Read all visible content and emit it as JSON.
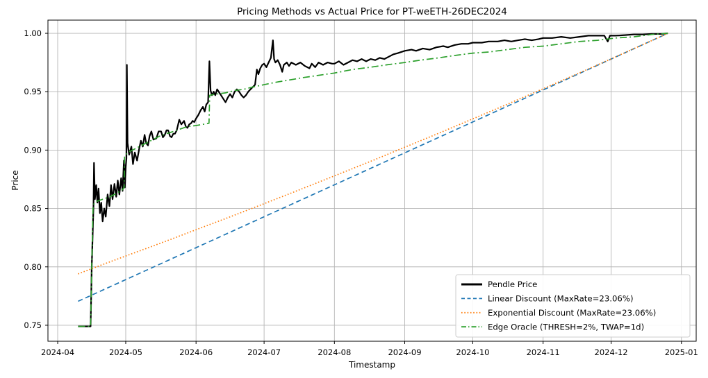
{
  "figure": {
    "title": "Pricing Methods vs Actual Price for PT-weETH-26DEC2024",
    "xlabel": "Timestamp",
    "ylabel": "Price"
  },
  "chart_data": {
    "type": "line",
    "title": "Pricing Methods vs Actual Price for PT-weETH-26DEC2024",
    "xlabel": "Timestamp",
    "ylabel": "Price",
    "x_unit": "days since 2024-04-01",
    "x_domain": [
      -4.3,
      281.5
    ],
    "y_domain": [
      0.7363,
      1.0113
    ],
    "grid": true,
    "legend_position": "lower right",
    "x_ticks": [
      {
        "d": 0,
        "label": "2024-04"
      },
      {
        "d": 30,
        "label": "2024-05"
      },
      {
        "d": 61,
        "label": "2024-06"
      },
      {
        "d": 91,
        "label": "2024-07"
      },
      {
        "d": 122,
        "label": "2024-08"
      },
      {
        "d": 153,
        "label": "2024-09"
      },
      {
        "d": 183,
        "label": "2024-10"
      },
      {
        "d": 214,
        "label": "2024-11"
      },
      {
        "d": 244,
        "label": "2024-12"
      },
      {
        "d": 275,
        "label": "2025-01"
      }
    ],
    "y_ticks": [
      {
        "v": 0.75,
        "label": "0.75"
      },
      {
        "v": 0.8,
        "label": "0.80"
      },
      {
        "v": 0.85,
        "label": "0.85"
      },
      {
        "v": 0.9,
        "label": "0.90"
      },
      {
        "v": 0.95,
        "label": "0.95"
      },
      {
        "v": 1.0,
        "label": "1.00"
      }
    ],
    "series": [
      {
        "name": "Pendle Price",
        "id": "pendle-price",
        "color": "#000000",
        "style": "solid",
        "width": 2.2,
        "points": [
          [
            9,
            0.749
          ],
          [
            14.5,
            0.749
          ],
          [
            14.8,
            0.78
          ],
          [
            15,
            0.799
          ],
          [
            15.3,
            0.82
          ],
          [
            15.8,
            0.853
          ],
          [
            16,
            0.889
          ],
          [
            16.4,
            0.858
          ],
          [
            17,
            0.87
          ],
          [
            17.5,
            0.855
          ],
          [
            18,
            0.867
          ],
          [
            18.6,
            0.846
          ],
          [
            19.2,
            0.855
          ],
          [
            19.8,
            0.839
          ],
          [
            20.5,
            0.85
          ],
          [
            21.2,
            0.843
          ],
          [
            22,
            0.862
          ],
          [
            22.8,
            0.852
          ],
          [
            23.5,
            0.87
          ],
          [
            24.2,
            0.858
          ],
          [
            25,
            0.871
          ],
          [
            25.8,
            0.86
          ],
          [
            26.5,
            0.874
          ],
          [
            27.2,
            0.862
          ],
          [
            28,
            0.876
          ],
          [
            28.6,
            0.865
          ],
          [
            29.2,
            0.891
          ],
          [
            29.6,
            0.868
          ],
          [
            30,
            0.886
          ],
          [
            30.3,
            0.893
          ],
          [
            30.5,
            0.973
          ],
          [
            30.8,
            0.906
          ],
          [
            31.5,
            0.896
          ],
          [
            32.5,
            0.903
          ],
          [
            33.2,
            0.888
          ],
          [
            34,
            0.898
          ],
          [
            35,
            0.891
          ],
          [
            36,
            0.902
          ],
          [
            36.7,
            0.908
          ],
          [
            37.5,
            0.903
          ],
          [
            38.3,
            0.913
          ],
          [
            39,
            0.906
          ],
          [
            39.8,
            0.904
          ],
          [
            40.5,
            0.912
          ],
          [
            41.3,
            0.916
          ],
          [
            42.2,
            0.909
          ],
          [
            43.5,
            0.91
          ],
          [
            44.5,
            0.916
          ],
          [
            45.6,
            0.916
          ],
          [
            46.4,
            0.911
          ],
          [
            47.2,
            0.913
          ],
          [
            48,
            0.917
          ],
          [
            48.7,
            0.917
          ],
          [
            49.5,
            0.912
          ],
          [
            50.2,
            0.911
          ],
          [
            51,
            0.914
          ],
          [
            51.7,
            0.914
          ],
          [
            52.5,
            0.917
          ],
          [
            53.6,
            0.926
          ],
          [
            54.5,
            0.922
          ],
          [
            55.7,
            0.925
          ],
          [
            56.5,
            0.92
          ],
          [
            57.2,
            0.919
          ],
          [
            58,
            0.922
          ],
          [
            58.8,
            0.923
          ],
          [
            59.5,
            0.925
          ],
          [
            60.2,
            0.924
          ],
          [
            61,
            0.927
          ],
          [
            62,
            0.93
          ],
          [
            63,
            0.934
          ],
          [
            64,
            0.937
          ],
          [
            64.8,
            0.933
          ],
          [
            65.5,
            0.939
          ],
          [
            66.3,
            0.941
          ],
          [
            66.9,
            0.976
          ],
          [
            67.4,
            0.951
          ],
          [
            68,
            0.947
          ],
          [
            68.8,
            0.95
          ],
          [
            69.5,
            0.947
          ],
          [
            70.3,
            0.952
          ],
          [
            71,
            0.95
          ],
          [
            72,
            0.947
          ],
          [
            73,
            0.944
          ],
          [
            74,
            0.941
          ],
          [
            75,
            0.945
          ],
          [
            76,
            0.948
          ],
          [
            77,
            0.945
          ],
          [
            78,
            0.95
          ],
          [
            79,
            0.952
          ],
          [
            80,
            0.95
          ],
          [
            81,
            0.947
          ],
          [
            82,
            0.945
          ],
          [
            83,
            0.947
          ],
          [
            84,
            0.95
          ],
          [
            85,
            0.952
          ],
          [
            86,
            0.954
          ],
          [
            87,
            0.956
          ],
          [
            87.8,
            0.969
          ],
          [
            88.5,
            0.965
          ],
          [
            89.3,
            0.97
          ],
          [
            90.2,
            0.973
          ],
          [
            91,
            0.974
          ],
          [
            92,
            0.971
          ],
          [
            93,
            0.975
          ],
          [
            94,
            0.979
          ],
          [
            94.9,
            0.994
          ],
          [
            95.4,
            0.978
          ],
          [
            96,
            0.975
          ],
          [
            97,
            0.977
          ],
          [
            98,
            0.973
          ],
          [
            99,
            0.967
          ],
          [
            99.7,
            0.973
          ],
          [
            101,
            0.975
          ],
          [
            102,
            0.972
          ],
          [
            103,
            0.975
          ],
          [
            105,
            0.973
          ],
          [
            107,
            0.975
          ],
          [
            109,
            0.972
          ],
          [
            111,
            0.97
          ],
          [
            112,
            0.974
          ],
          [
            113.5,
            0.971
          ],
          [
            115,
            0.975
          ],
          [
            117,
            0.973
          ],
          [
            119,
            0.975
          ],
          [
            121,
            0.974
          ],
          [
            122,
            0.974
          ],
          [
            124,
            0.976
          ],
          [
            126,
            0.973
          ],
          [
            128,
            0.975
          ],
          [
            130,
            0.977
          ],
          [
            132,
            0.976
          ],
          [
            134,
            0.978
          ],
          [
            136,
            0.976
          ],
          [
            138,
            0.978
          ],
          [
            140,
            0.977
          ],
          [
            142,
            0.979
          ],
          [
            144,
            0.978
          ],
          [
            146,
            0.98
          ],
          [
            148,
            0.982
          ],
          [
            150,
            0.983
          ],
          [
            153,
            0.985
          ],
          [
            156,
            0.986
          ],
          [
            158,
            0.985
          ],
          [
            161,
            0.987
          ],
          [
            164,
            0.986
          ],
          [
            167,
            0.988
          ],
          [
            170,
            0.989
          ],
          [
            172,
            0.988
          ],
          [
            175,
            0.99
          ],
          [
            178,
            0.991
          ],
          [
            181,
            0.991
          ],
          [
            183,
            0.992
          ],
          [
            187,
            0.992
          ],
          [
            190,
            0.993
          ],
          [
            194,
            0.993
          ],
          [
            197,
            0.994
          ],
          [
            200,
            0.993
          ],
          [
            203,
            0.994
          ],
          [
            206,
            0.995
          ],
          [
            209,
            0.994
          ],
          [
            212,
            0.995
          ],
          [
            214,
            0.996
          ],
          [
            218,
            0.996
          ],
          [
            222,
            0.997
          ],
          [
            226,
            0.996
          ],
          [
            230,
            0.997
          ],
          [
            234,
            0.998
          ],
          [
            238,
            0.998
          ],
          [
            241,
            0.998
          ],
          [
            242.5,
            0.993
          ],
          [
            243.5,
            0.998
          ],
          [
            246,
            0.998
          ],
          [
            250,
            0.9985
          ],
          [
            254,
            0.999
          ],
          [
            258,
            0.999
          ],
          [
            262,
            0.9995
          ],
          [
            266,
            0.9995
          ],
          [
            269,
            1.0
          ]
        ]
      },
      {
        "name": "Linear Discount (MaxRate=23.06%)",
        "id": "linear-discount",
        "color": "#1f77b4",
        "style": "dashed",
        "width": 1.7,
        "points": [
          [
            9,
            0.7705
          ],
          [
            269,
            1.0
          ]
        ]
      },
      {
        "name": "Exponential Discount (MaxRate=23.06%)",
        "id": "exponential-discount",
        "color": "#ff7f0e",
        "style": "dotted",
        "width": 1.7,
        "points": [
          [
            9,
            0.794
          ],
          [
            20,
            0.8021
          ],
          [
            30,
            0.8093
          ],
          [
            40,
            0.8164
          ],
          [
            50,
            0.8237
          ],
          [
            61,
            0.8318
          ],
          [
            75,
            0.8421
          ],
          [
            91,
            0.8541
          ],
          [
            105,
            0.8648
          ],
          [
            122,
            0.8779
          ],
          [
            140,
            0.892
          ],
          [
            153,
            0.9024
          ],
          [
            168,
            0.9144
          ],
          [
            183,
            0.9267
          ],
          [
            199,
            0.9399
          ],
          [
            214,
            0.9525
          ],
          [
            229,
            0.9652
          ],
          [
            244,
            0.9781
          ],
          [
            256,
            0.9886
          ],
          [
            269,
            1.0
          ]
        ]
      },
      {
        "name": "Edge Oracle (THRESH=2%, TWAP=1d)",
        "id": "edge-oracle",
        "color": "#2ca02c",
        "style": "dashdot",
        "width": 1.7,
        "points": [
          [
            9,
            0.749
          ],
          [
            14.5,
            0.749
          ],
          [
            15,
            0.8
          ],
          [
            15.6,
            0.853
          ],
          [
            17,
            0.856
          ],
          [
            20,
            0.858
          ],
          [
            23,
            0.86
          ],
          [
            26,
            0.863
          ],
          [
            28.5,
            0.866
          ],
          [
            29.3,
            0.868
          ],
          [
            29.5,
            0.895
          ],
          [
            31,
            0.898
          ],
          [
            33,
            0.9
          ],
          [
            36,
            0.903
          ],
          [
            39,
            0.906
          ],
          [
            42,
            0.909
          ],
          [
            45,
            0.912
          ],
          [
            48,
            0.914
          ],
          [
            51,
            0.916
          ],
          [
            54,
            0.918
          ],
          [
            57,
            0.92
          ],
          [
            61,
            0.921
          ],
          [
            64,
            0.922
          ],
          [
            66.7,
            0.923
          ],
          [
            67,
            0.947
          ],
          [
            70,
            0.948
          ],
          [
            74,
            0.949
          ],
          [
            78,
            0.951
          ],
          [
            82,
            0.952
          ],
          [
            86,
            0.954
          ],
          [
            91,
            0.956
          ],
          [
            96,
            0.958
          ],
          [
            102,
            0.96
          ],
          [
            108,
            0.962
          ],
          [
            115,
            0.964
          ],
          [
            122,
            0.966
          ],
          [
            130,
            0.969
          ],
          [
            138,
            0.971
          ],
          [
            145,
            0.973
          ],
          [
            153,
            0.975
          ],
          [
            160,
            0.977
          ],
          [
            168,
            0.979
          ],
          [
            175,
            0.981
          ],
          [
            183,
            0.983
          ],
          [
            190,
            0.984
          ],
          [
            198,
            0.986
          ],
          [
            206,
            0.988
          ],
          [
            214,
            0.989
          ],
          [
            222,
            0.991
          ],
          [
            230,
            0.993
          ],
          [
            238,
            0.994
          ],
          [
            246,
            0.996
          ],
          [
            254,
            0.997
          ],
          [
            262,
            0.999
          ],
          [
            269,
            1.0
          ]
        ]
      }
    ],
    "colors": {
      "grid": "#b4b4b4",
      "spine": "#000000",
      "legend_edge": "#cccccc",
      "background": "#ffffff"
    }
  }
}
